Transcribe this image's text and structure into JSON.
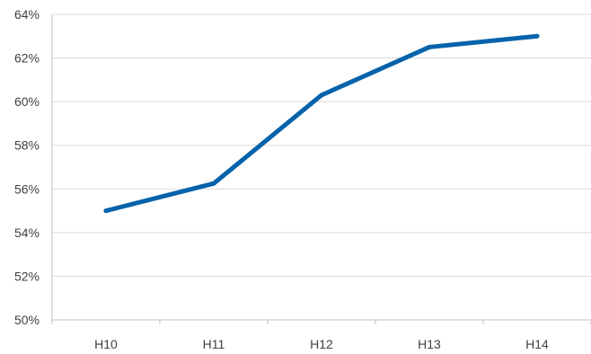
{
  "chart_data": {
    "type": "line",
    "title": "",
    "xlabel": "",
    "ylabel": "",
    "categories": [
      "H10",
      "H11",
      "H12",
      "H13",
      "H14"
    ],
    "series": [
      {
        "values": [
          55.0,
          56.25,
          60.3,
          62.5,
          63.0
        ],
        "color": "#0563ab"
      }
    ],
    "ylim": [
      50,
      64
    ],
    "yticks": [
      50,
      52,
      54,
      56,
      58,
      60,
      62,
      64
    ],
    "ytick_labels": [
      "50%",
      "52%",
      "54%",
      "56%",
      "58%",
      "60%",
      "62%",
      "64%"
    ],
    "grid": true,
    "legend": "none",
    "colors": {
      "grid": "#d9d9d9",
      "axis": "#bfbfbf",
      "text": "#404040"
    }
  }
}
